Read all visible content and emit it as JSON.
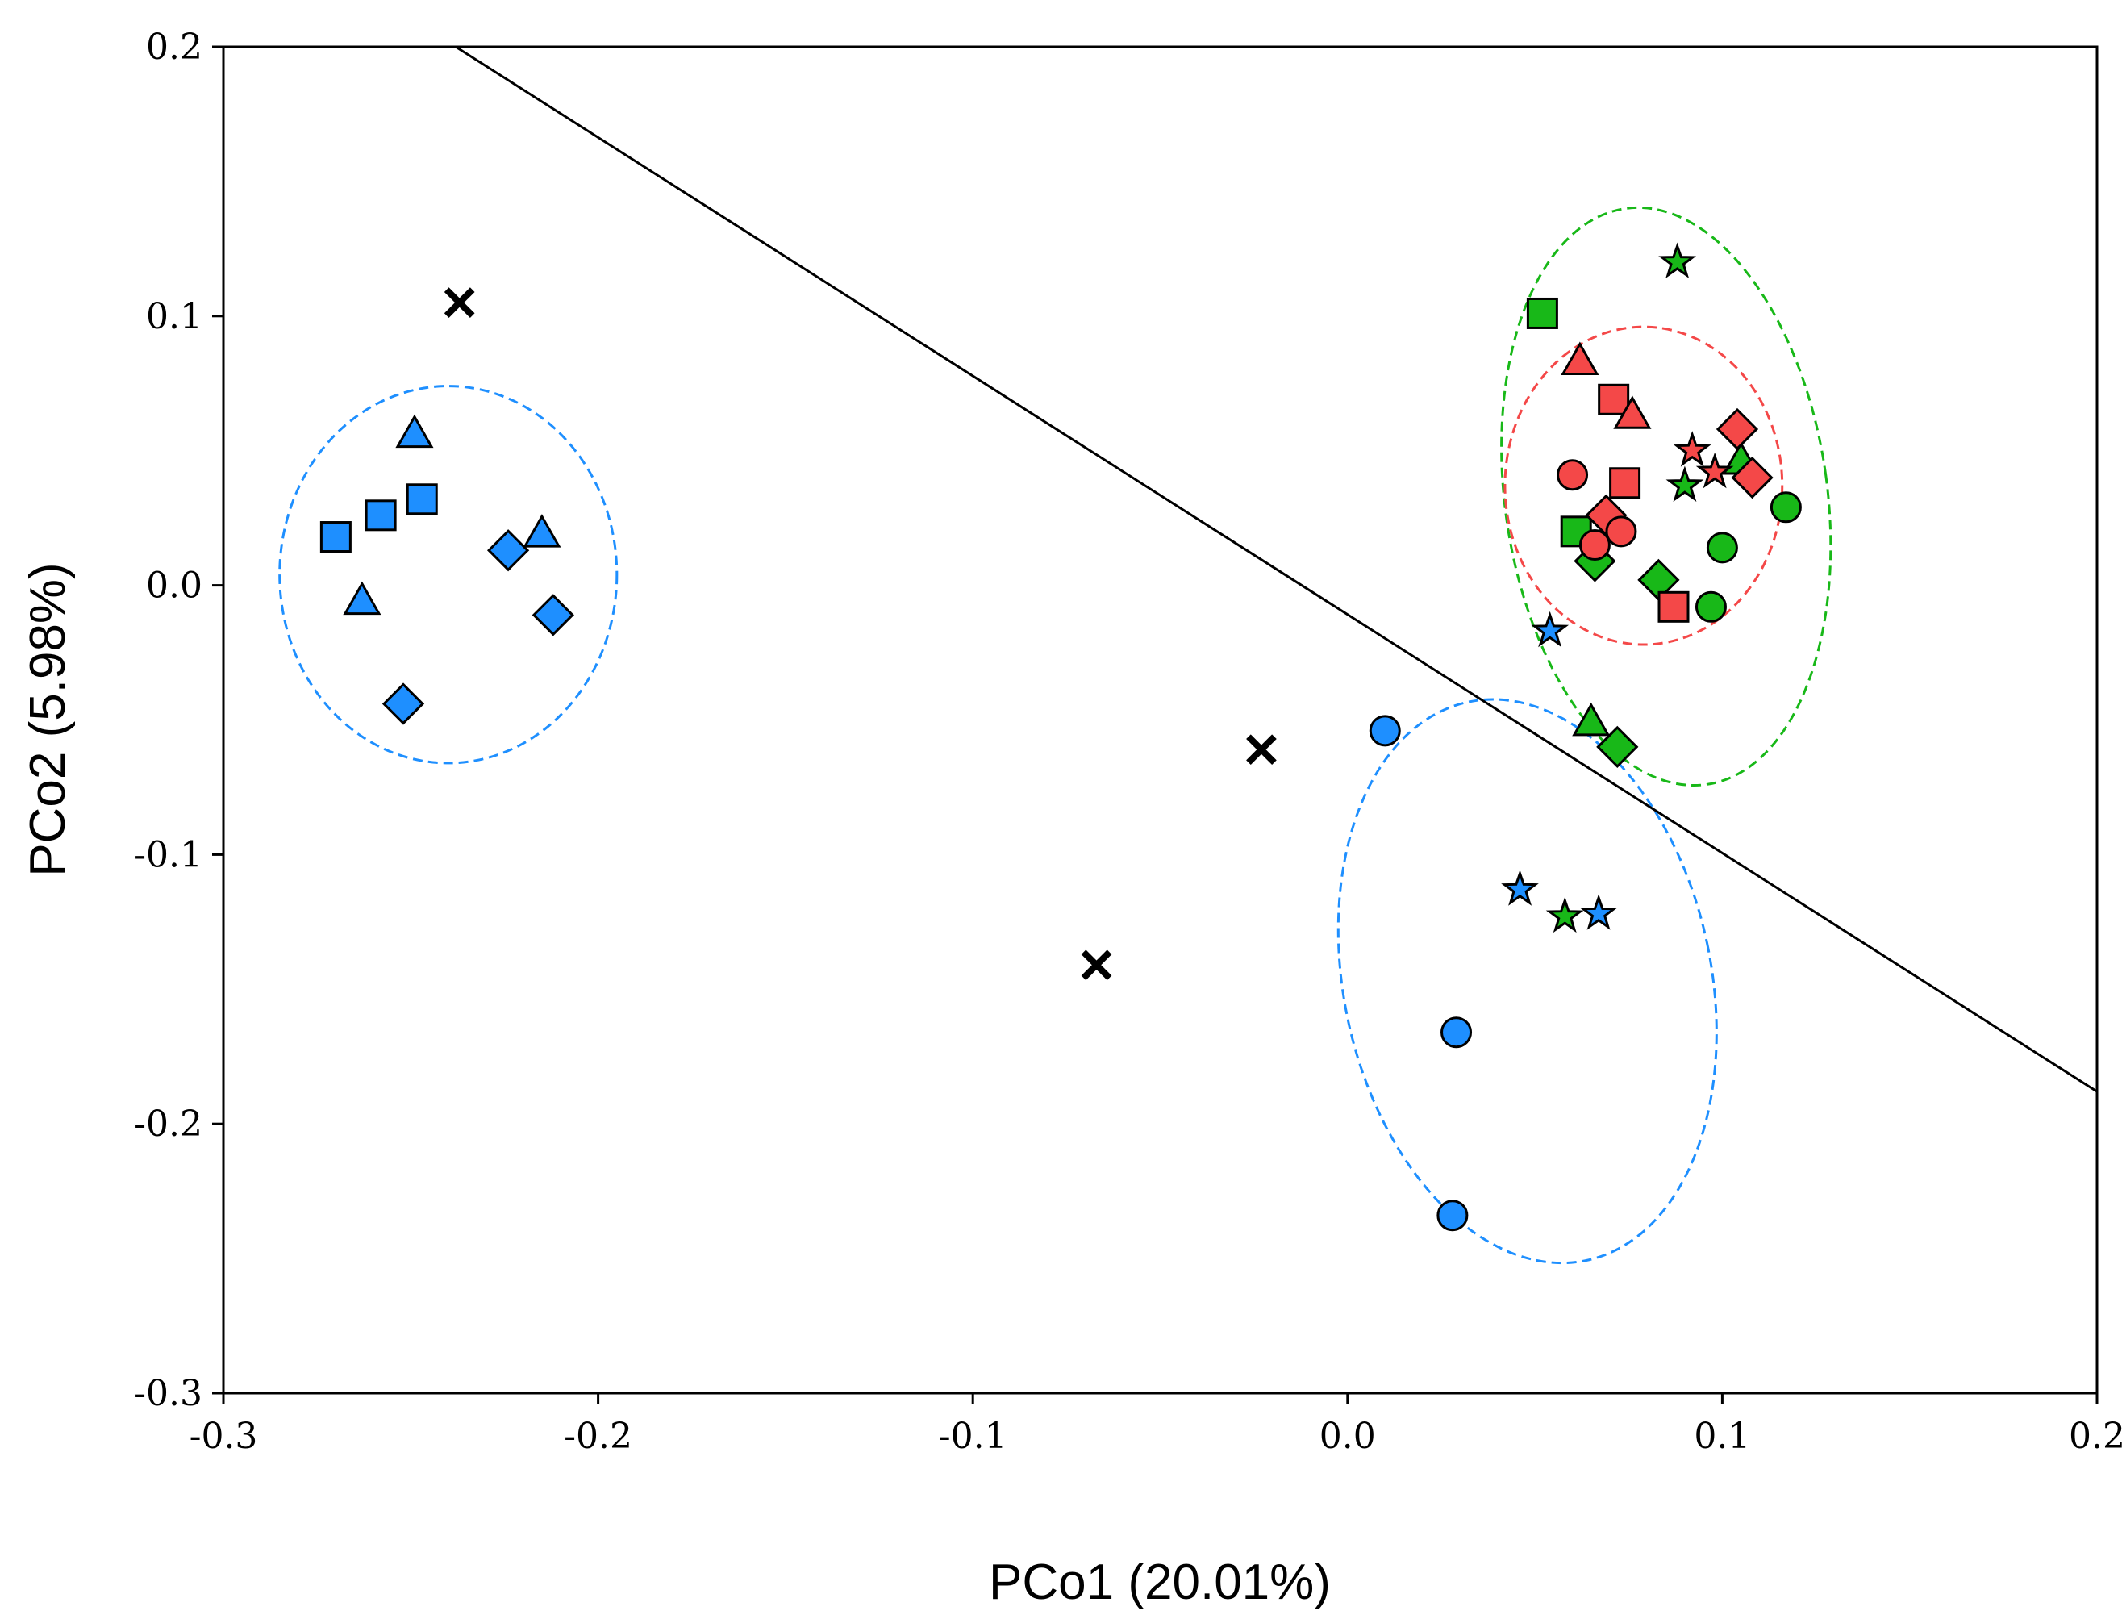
{
  "chart_data": {
    "type": "scatter",
    "xlabel": "PCo1 (20.01%)",
    "ylabel": "PCo2 (5.98%)",
    "xlim": [
      -0.3,
      0.2
    ],
    "ylim": [
      -0.3,
      0.2
    ],
    "xticks": [
      "-0.3",
      "-0.2",
      "-0.1",
      "0.0",
      "0.1",
      "0.2"
    ],
    "yticks": [
      "-0.3",
      "-0.2",
      "-0.1",
      "0.0",
      "0.1",
      "0.2"
    ],
    "grid": false,
    "colors": {
      "blue": "#1e8fff",
      "green": "#18b818",
      "red": "#f44848",
      "black": "#000000"
    },
    "line": {
      "x": [
        -0.238,
        0.2
      ],
      "y": [
        0.2,
        -0.188
      ]
    },
    "ellipses": [
      {
        "color": "blue",
        "cx": -0.24,
        "cy": 0.004,
        "rx": 0.045,
        "ry": 0.07,
        "angle": 0
      },
      {
        "color": "blue",
        "cx": 0.048,
        "cy": -0.147,
        "rx": 0.049,
        "ry": 0.106,
        "angle": -12
      },
      {
        "color": "green",
        "cx": 0.085,
        "cy": 0.033,
        "rx": 0.043,
        "ry": 0.108,
        "angle": -8
      },
      {
        "color": "red",
        "cx": 0.079,
        "cy": 0.037,
        "rx": 0.037,
        "ry": 0.059,
        "angle": 0
      }
    ],
    "points": [
      {
        "x": -0.27,
        "y": 0.018,
        "marker": "square",
        "color": "blue"
      },
      {
        "x": -0.258,
        "y": 0.026,
        "marker": "square",
        "color": "blue"
      },
      {
        "x": -0.247,
        "y": 0.032,
        "marker": "square",
        "color": "blue"
      },
      {
        "x": -0.249,
        "y": 0.056,
        "marker": "triangle",
        "color": "blue"
      },
      {
        "x": -0.263,
        "y": -0.006,
        "marker": "triangle",
        "color": "blue"
      },
      {
        "x": -0.215,
        "y": 0.019,
        "marker": "triangle",
        "color": "blue"
      },
      {
        "x": -0.224,
        "y": 0.013,
        "marker": "diamond",
        "color": "blue"
      },
      {
        "x": -0.212,
        "y": -0.011,
        "marker": "diamond",
        "color": "blue"
      },
      {
        "x": -0.252,
        "y": -0.044,
        "marker": "diamond",
        "color": "blue"
      },
      {
        "x": 0.01,
        "y": -0.054,
        "marker": "circle",
        "color": "blue"
      },
      {
        "x": 0.029,
        "y": -0.166,
        "marker": "circle",
        "color": "blue"
      },
      {
        "x": 0.028,
        "y": -0.234,
        "marker": "circle",
        "color": "blue"
      },
      {
        "x": 0.046,
        "y": -0.113,
        "marker": "star",
        "color": "blue"
      },
      {
        "x": 0.067,
        "y": -0.122,
        "marker": "star",
        "color": "blue"
      },
      {
        "x": 0.054,
        "y": -0.017,
        "marker": "star",
        "color": "blue"
      },
      {
        "x": 0.052,
        "y": 0.101,
        "marker": "square",
        "color": "green"
      },
      {
        "x": 0.061,
        "y": 0.02,
        "marker": "square",
        "color": "green"
      },
      {
        "x": 0.065,
        "y": -0.051,
        "marker": "triangle",
        "color": "green"
      },
      {
        "x": 0.105,
        "y": 0.046,
        "marker": "triangle",
        "color": "green"
      },
      {
        "x": 0.066,
        "y": 0.009,
        "marker": "diamond",
        "color": "green"
      },
      {
        "x": 0.083,
        "y": 0.002,
        "marker": "diamond",
        "color": "green"
      },
      {
        "x": 0.072,
        "y": -0.06,
        "marker": "diamond",
        "color": "green"
      },
      {
        "x": 0.1,
        "y": 0.014,
        "marker": "circle",
        "color": "green"
      },
      {
        "x": 0.097,
        "y": -0.008,
        "marker": "circle",
        "color": "green"
      },
      {
        "x": 0.117,
        "y": 0.029,
        "marker": "circle",
        "color": "green"
      },
      {
        "x": 0.088,
        "y": 0.12,
        "marker": "star",
        "color": "green"
      },
      {
        "x": 0.09,
        "y": 0.037,
        "marker": "star",
        "color": "green"
      },
      {
        "x": 0.058,
        "y": -0.123,
        "marker": "star",
        "color": "green"
      },
      {
        "x": 0.071,
        "y": 0.069,
        "marker": "square",
        "color": "red"
      },
      {
        "x": 0.074,
        "y": 0.038,
        "marker": "square",
        "color": "red"
      },
      {
        "x": 0.087,
        "y": -0.008,
        "marker": "square",
        "color": "red"
      },
      {
        "x": 0.062,
        "y": 0.083,
        "marker": "triangle",
        "color": "red"
      },
      {
        "x": 0.076,
        "y": 0.063,
        "marker": "triangle",
        "color": "red"
      },
      {
        "x": 0.104,
        "y": 0.058,
        "marker": "diamond",
        "color": "red"
      },
      {
        "x": 0.108,
        "y": 0.04,
        "marker": "diamond",
        "color": "red"
      },
      {
        "x": 0.069,
        "y": 0.026,
        "marker": "diamond",
        "color": "red"
      },
      {
        "x": 0.06,
        "y": 0.041,
        "marker": "circle",
        "color": "red"
      },
      {
        "x": 0.066,
        "y": 0.015,
        "marker": "circle",
        "color": "red"
      },
      {
        "x": 0.073,
        "y": 0.02,
        "marker": "circle",
        "color": "red"
      },
      {
        "x": 0.092,
        "y": 0.05,
        "marker": "star",
        "color": "red"
      },
      {
        "x": 0.098,
        "y": 0.042,
        "marker": "star",
        "color": "red"
      },
      {
        "x": -0.237,
        "y": 0.105,
        "marker": "x",
        "color": "black"
      },
      {
        "x": -0.023,
        "y": -0.061,
        "marker": "x",
        "color": "black"
      },
      {
        "x": -0.067,
        "y": -0.141,
        "marker": "x",
        "color": "black"
      }
    ]
  }
}
